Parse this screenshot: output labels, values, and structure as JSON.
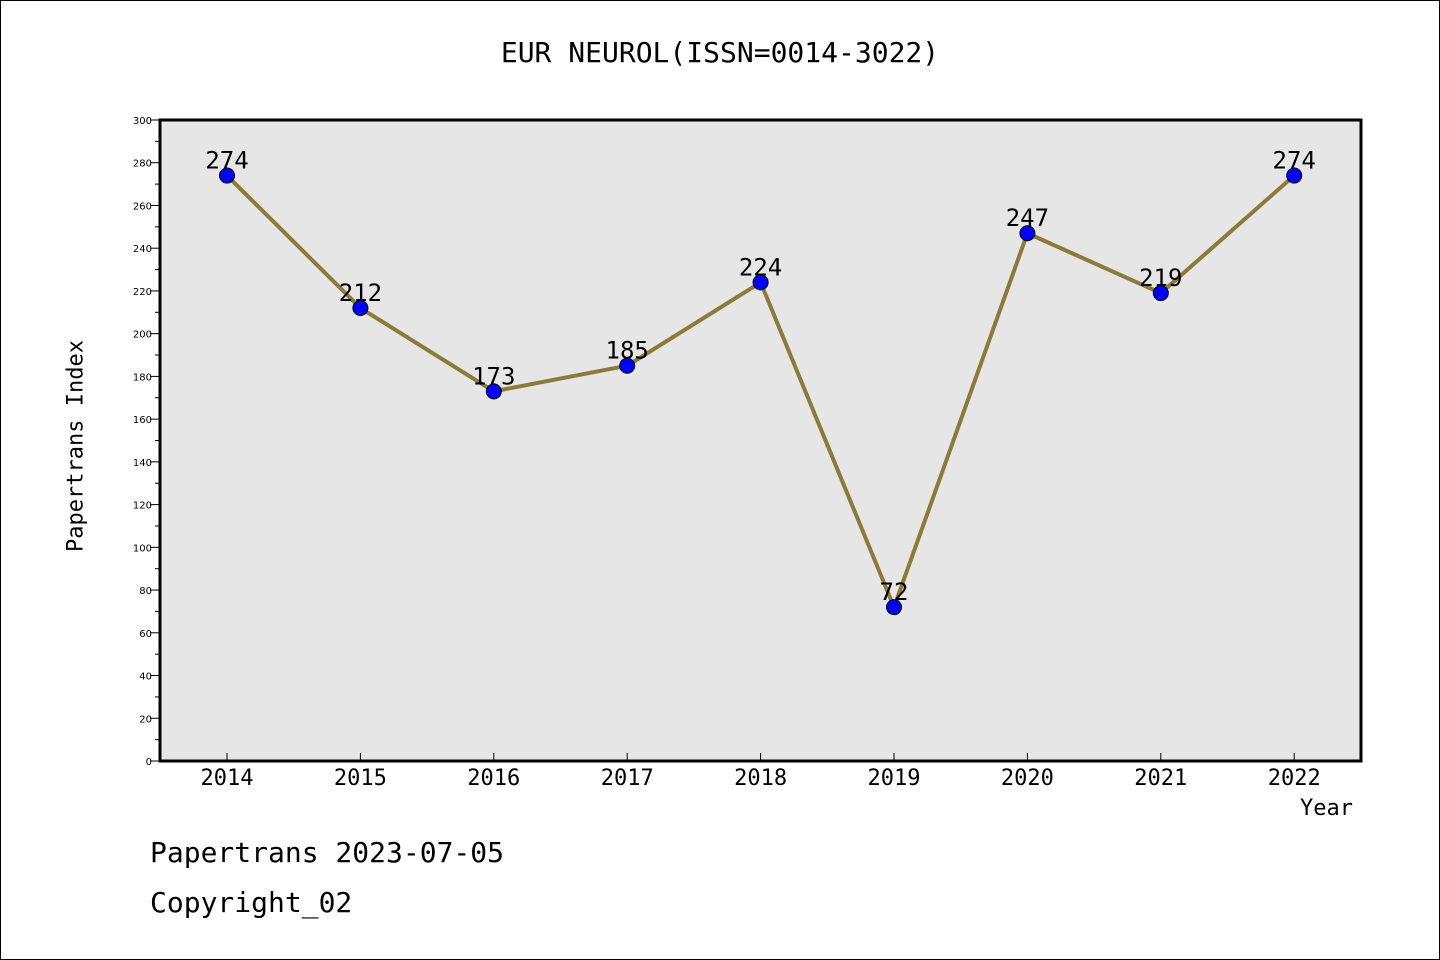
{
  "chart_data": {
    "type": "line",
    "title": "EUR NEUROL(ISSN=0014-3022)",
    "xlabel": "Year",
    "ylabel": "Papertrans Index",
    "categories": [
      "2014",
      "2015",
      "2016",
      "2017",
      "2018",
      "2019",
      "2020",
      "2021",
      "2022"
    ],
    "series": [
      {
        "values": [
          274,
          212,
          173,
          185,
          224,
          72,
          247,
          219,
          274
        ]
      }
    ],
    "ylim": [
      0,
      300
    ],
    "yticks": [
      0,
      20,
      40,
      60,
      80,
      100,
      120,
      140,
      160,
      180,
      200,
      220,
      240,
      260,
      280,
      300
    ],
    "grid": false,
    "line_color": "#8b7a3a",
    "marker_color": "#0000ff",
    "plot_background": "#e6e6e6"
  },
  "footer": {
    "date_line": "Papertrans 2023-07-05",
    "copyright": "Copyright_02"
  }
}
